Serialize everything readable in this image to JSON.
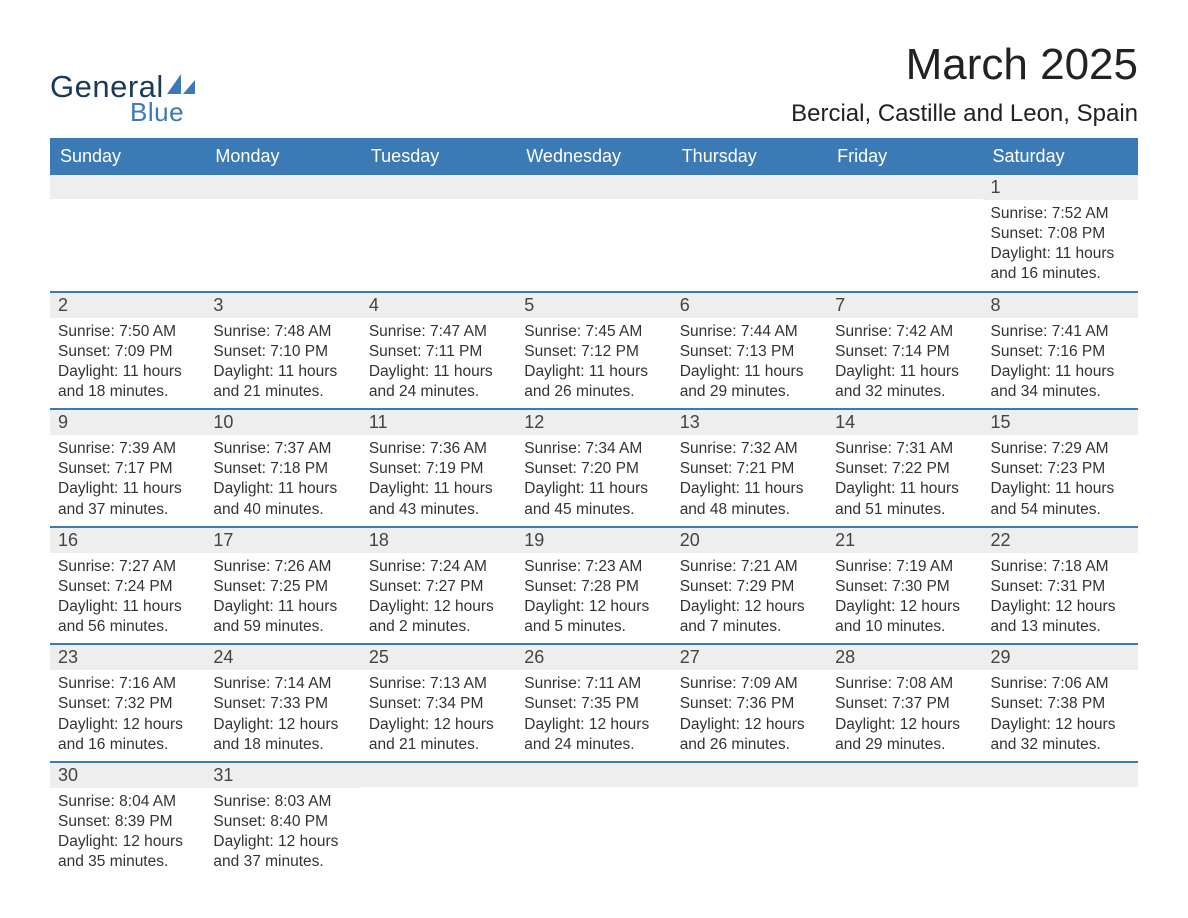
{
  "logo": {
    "text_general": "General",
    "text_blue": "Blue",
    "sail_color": "#3c7ab5",
    "general_color": "#1a3a5a",
    "blue_color": "#3c7ab5"
  },
  "title": "March 2025",
  "location": "Bercial, Castille and Leon, Spain",
  "colors": {
    "header_bg": "#3c7ab5",
    "header_text": "#ffffff",
    "row_divider": "#3c7ab5",
    "daynum_bg": "#eeeeee",
    "body_text": "#333333",
    "page_bg": "#ffffff"
  },
  "daynames": [
    "Sunday",
    "Monday",
    "Tuesday",
    "Wednesday",
    "Thursday",
    "Friday",
    "Saturday"
  ],
  "weeks": [
    [
      {
        "num": "",
        "lines": [
          "",
          "",
          "",
          ""
        ]
      },
      {
        "num": "",
        "lines": [
          "",
          "",
          "",
          ""
        ]
      },
      {
        "num": "",
        "lines": [
          "",
          "",
          "",
          ""
        ]
      },
      {
        "num": "",
        "lines": [
          "",
          "",
          "",
          ""
        ]
      },
      {
        "num": "",
        "lines": [
          "",
          "",
          "",
          ""
        ]
      },
      {
        "num": "",
        "lines": [
          "",
          "",
          "",
          ""
        ]
      },
      {
        "num": "1",
        "lines": [
          "Sunrise: 7:52 AM",
          "Sunset: 7:08 PM",
          "Daylight: 11 hours",
          "and 16 minutes."
        ]
      }
    ],
    [
      {
        "num": "2",
        "lines": [
          "Sunrise: 7:50 AM",
          "Sunset: 7:09 PM",
          "Daylight: 11 hours",
          "and 18 minutes."
        ]
      },
      {
        "num": "3",
        "lines": [
          "Sunrise: 7:48 AM",
          "Sunset: 7:10 PM",
          "Daylight: 11 hours",
          "and 21 minutes."
        ]
      },
      {
        "num": "4",
        "lines": [
          "Sunrise: 7:47 AM",
          "Sunset: 7:11 PM",
          "Daylight: 11 hours",
          "and 24 minutes."
        ]
      },
      {
        "num": "5",
        "lines": [
          "Sunrise: 7:45 AM",
          "Sunset: 7:12 PM",
          "Daylight: 11 hours",
          "and 26 minutes."
        ]
      },
      {
        "num": "6",
        "lines": [
          "Sunrise: 7:44 AM",
          "Sunset: 7:13 PM",
          "Daylight: 11 hours",
          "and 29 minutes."
        ]
      },
      {
        "num": "7",
        "lines": [
          "Sunrise: 7:42 AM",
          "Sunset: 7:14 PM",
          "Daylight: 11 hours",
          "and 32 minutes."
        ]
      },
      {
        "num": "8",
        "lines": [
          "Sunrise: 7:41 AM",
          "Sunset: 7:16 PM",
          "Daylight: 11 hours",
          "and 34 minutes."
        ]
      }
    ],
    [
      {
        "num": "9",
        "lines": [
          "Sunrise: 7:39 AM",
          "Sunset: 7:17 PM",
          "Daylight: 11 hours",
          "and 37 minutes."
        ]
      },
      {
        "num": "10",
        "lines": [
          "Sunrise: 7:37 AM",
          "Sunset: 7:18 PM",
          "Daylight: 11 hours",
          "and 40 minutes."
        ]
      },
      {
        "num": "11",
        "lines": [
          "Sunrise: 7:36 AM",
          "Sunset: 7:19 PM",
          "Daylight: 11 hours",
          "and 43 minutes."
        ]
      },
      {
        "num": "12",
        "lines": [
          "Sunrise: 7:34 AM",
          "Sunset: 7:20 PM",
          "Daylight: 11 hours",
          "and 45 minutes."
        ]
      },
      {
        "num": "13",
        "lines": [
          "Sunrise: 7:32 AM",
          "Sunset: 7:21 PM",
          "Daylight: 11 hours",
          "and 48 minutes."
        ]
      },
      {
        "num": "14",
        "lines": [
          "Sunrise: 7:31 AM",
          "Sunset: 7:22 PM",
          "Daylight: 11 hours",
          "and 51 minutes."
        ]
      },
      {
        "num": "15",
        "lines": [
          "Sunrise: 7:29 AM",
          "Sunset: 7:23 PM",
          "Daylight: 11 hours",
          "and 54 minutes."
        ]
      }
    ],
    [
      {
        "num": "16",
        "lines": [
          "Sunrise: 7:27 AM",
          "Sunset: 7:24 PM",
          "Daylight: 11 hours",
          "and 56 minutes."
        ]
      },
      {
        "num": "17",
        "lines": [
          "Sunrise: 7:26 AM",
          "Sunset: 7:25 PM",
          "Daylight: 11 hours",
          "and 59 minutes."
        ]
      },
      {
        "num": "18",
        "lines": [
          "Sunrise: 7:24 AM",
          "Sunset: 7:27 PM",
          "Daylight: 12 hours",
          "and 2 minutes."
        ]
      },
      {
        "num": "19",
        "lines": [
          "Sunrise: 7:23 AM",
          "Sunset: 7:28 PM",
          "Daylight: 12 hours",
          "and 5 minutes."
        ]
      },
      {
        "num": "20",
        "lines": [
          "Sunrise: 7:21 AM",
          "Sunset: 7:29 PM",
          "Daylight: 12 hours",
          "and 7 minutes."
        ]
      },
      {
        "num": "21",
        "lines": [
          "Sunrise: 7:19 AM",
          "Sunset: 7:30 PM",
          "Daylight: 12 hours",
          "and 10 minutes."
        ]
      },
      {
        "num": "22",
        "lines": [
          "Sunrise: 7:18 AM",
          "Sunset: 7:31 PM",
          "Daylight: 12 hours",
          "and 13 minutes."
        ]
      }
    ],
    [
      {
        "num": "23",
        "lines": [
          "Sunrise: 7:16 AM",
          "Sunset: 7:32 PM",
          "Daylight: 12 hours",
          "and 16 minutes."
        ]
      },
      {
        "num": "24",
        "lines": [
          "Sunrise: 7:14 AM",
          "Sunset: 7:33 PM",
          "Daylight: 12 hours",
          "and 18 minutes."
        ]
      },
      {
        "num": "25",
        "lines": [
          "Sunrise: 7:13 AM",
          "Sunset: 7:34 PM",
          "Daylight: 12 hours",
          "and 21 minutes."
        ]
      },
      {
        "num": "26",
        "lines": [
          "Sunrise: 7:11 AM",
          "Sunset: 7:35 PM",
          "Daylight: 12 hours",
          "and 24 minutes."
        ]
      },
      {
        "num": "27",
        "lines": [
          "Sunrise: 7:09 AM",
          "Sunset: 7:36 PM",
          "Daylight: 12 hours",
          "and 26 minutes."
        ]
      },
      {
        "num": "28",
        "lines": [
          "Sunrise: 7:08 AM",
          "Sunset: 7:37 PM",
          "Daylight: 12 hours",
          "and 29 minutes."
        ]
      },
      {
        "num": "29",
        "lines": [
          "Sunrise: 7:06 AM",
          "Sunset: 7:38 PM",
          "Daylight: 12 hours",
          "and 32 minutes."
        ]
      }
    ],
    [
      {
        "num": "30",
        "lines": [
          "Sunrise: 8:04 AM",
          "Sunset: 8:39 PM",
          "Daylight: 12 hours",
          "and 35 minutes."
        ]
      },
      {
        "num": "31",
        "lines": [
          "Sunrise: 8:03 AM",
          "Sunset: 8:40 PM",
          "Daylight: 12 hours",
          "and 37 minutes."
        ]
      },
      {
        "num": "",
        "lines": [
          "",
          "",
          "",
          ""
        ]
      },
      {
        "num": "",
        "lines": [
          "",
          "",
          "",
          ""
        ]
      },
      {
        "num": "",
        "lines": [
          "",
          "",
          "",
          ""
        ]
      },
      {
        "num": "",
        "lines": [
          "",
          "",
          "",
          ""
        ]
      },
      {
        "num": "",
        "lines": [
          "",
          "",
          "",
          ""
        ]
      }
    ]
  ]
}
